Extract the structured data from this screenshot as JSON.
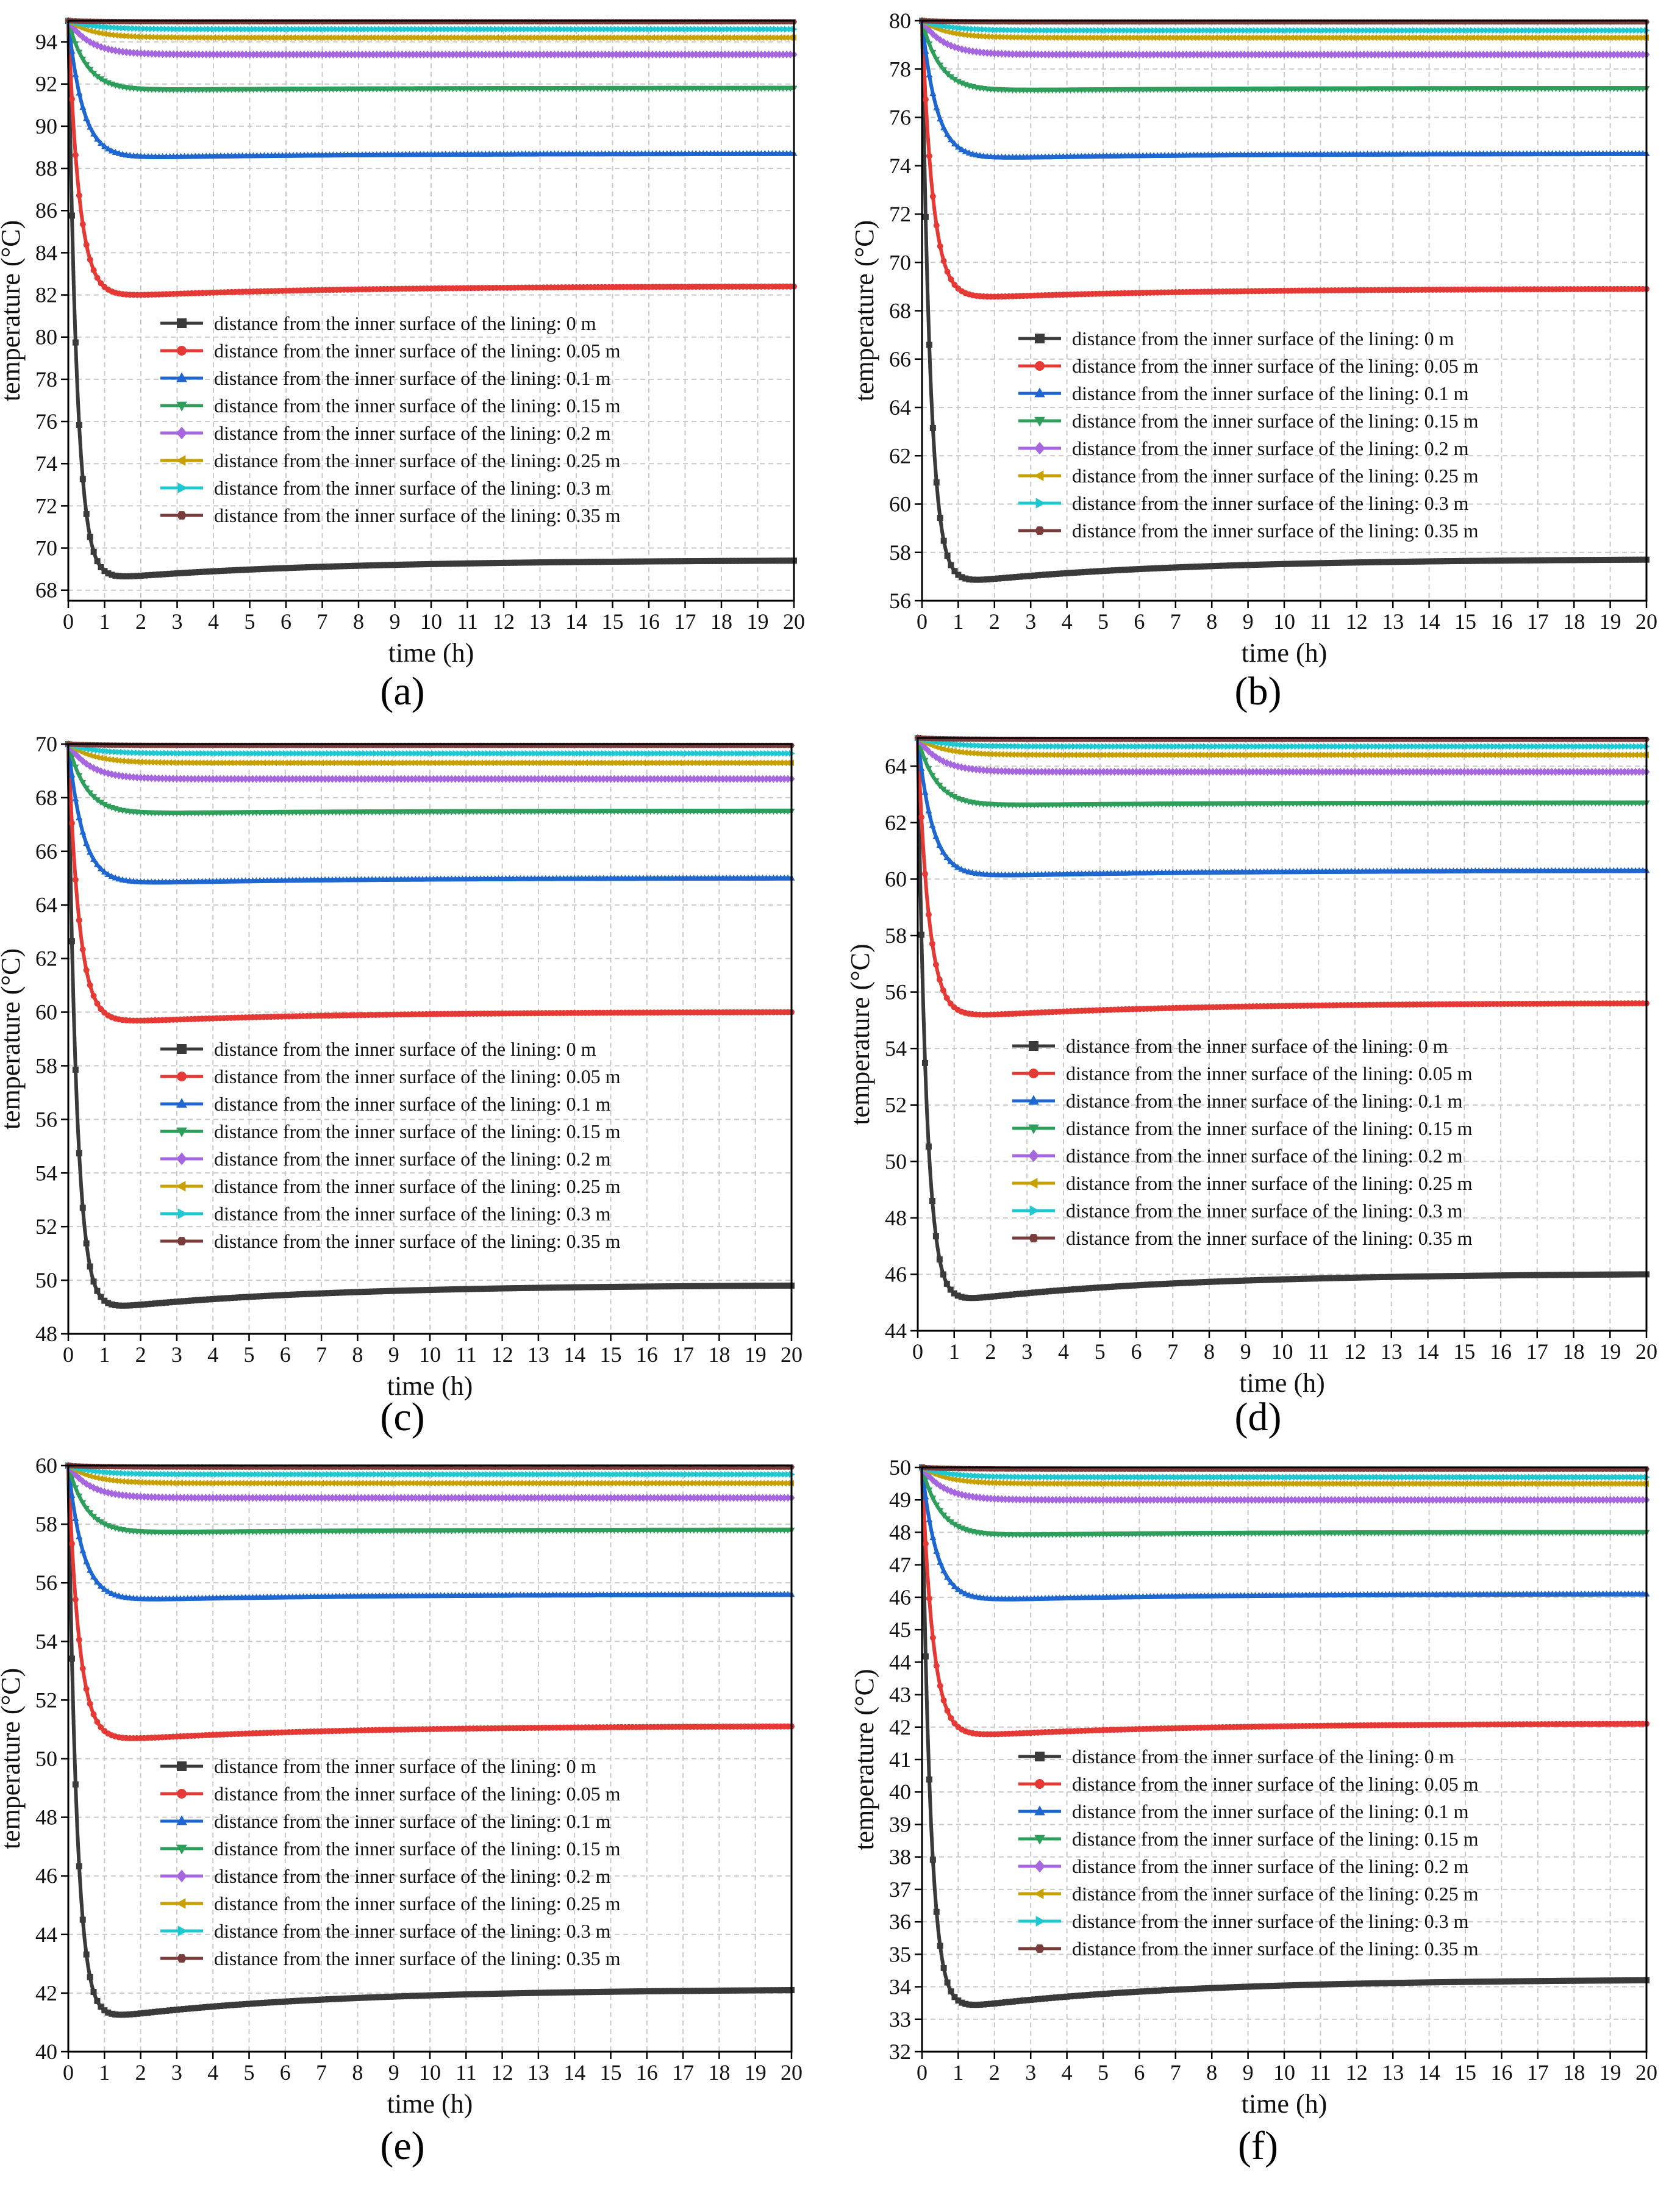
{
  "figure": {
    "panel_labels": [
      "(a)",
      "(b)",
      "(c)",
      "(d)",
      "(e)",
      "(f)"
    ]
  },
  "chart_data": [
    {
      "type": "line",
      "panel": "(a)",
      "xlabel": "time (h)",
      "ylabel": "temperature (°C)",
      "xlim": [
        0,
        20
      ],
      "ylim": [
        67.5,
        95
      ],
      "xticks": [
        0,
        1,
        2,
        3,
        4,
        5,
        6,
        7,
        8,
        9,
        10,
        11,
        12,
        13,
        14,
        15,
        16,
        17,
        18,
        19,
        20
      ],
      "yticks": [
        68,
        70,
        72,
        74,
        76,
        78,
        80,
        82,
        84,
        86,
        88,
        90,
        92,
        94
      ],
      "grid": true,
      "legend": "center",
      "series": [
        {
          "name": "distance from the inner surface of the lining: 0 m",
          "color": "#3a3a3a",
          "marker": "square",
          "initial": 95,
          "min": 68.5,
          "t_min": 0.7,
          "final": 69.4
        },
        {
          "name": "distance from the inner surface of the lining: 0.05 m",
          "color": "#e53935",
          "marker": "circle",
          "initial": 95,
          "min": 81.9,
          "t_min": 0.9,
          "final": 82.4
        },
        {
          "name": "distance from the inner surface of the lining: 0.1 m",
          "color": "#1e66d0",
          "marker": "triangle-up",
          "initial": 95,
          "min": 88.5,
          "t_min": 1.2,
          "final": 88.7
        },
        {
          "name": "distance from the inner surface of the lining: 0.15 m",
          "color": "#2e9e5b",
          "marker": "triangle-down",
          "initial": 95,
          "min": 91.7,
          "t_min": 1.5,
          "final": 91.8
        },
        {
          "name": "distance from the inner surface of the lining: 0.2 m",
          "color": "#a566e0",
          "marker": "diamond",
          "initial": 95,
          "min": 93.4,
          "t_min": 1.8,
          "final": 93.4
        },
        {
          "name": "distance from the inner surface of the lining: 0.25 m",
          "color": "#c8a000",
          "marker": "triangle-left",
          "initial": 95,
          "min": 94.2,
          "t_min": 2.0,
          "final": 94.2
        },
        {
          "name": "distance from the inner surface of the lining: 0.3 m",
          "color": "#1ec8d0",
          "marker": "triangle-right",
          "initial": 95,
          "min": 94.6,
          "t_min": 2.2,
          "final": 94.6
        },
        {
          "name": "distance from the inner surface of the lining: 0.35 m",
          "color": "#7a3b3b",
          "marker": "hexagon",
          "initial": 95,
          "min": 94.95,
          "t_min": 2.5,
          "final": 94.95
        }
      ]
    },
    {
      "type": "line",
      "panel": "(b)",
      "xlabel": "time (h)",
      "ylabel": "temperature (°C)",
      "xlim": [
        0,
        20
      ],
      "ylim": [
        56,
        80
      ],
      "xticks": [
        0,
        1,
        2,
        3,
        4,
        5,
        6,
        7,
        8,
        9,
        10,
        11,
        12,
        13,
        14,
        15,
        16,
        17,
        18,
        19,
        20
      ],
      "yticks": [
        56,
        58,
        60,
        62,
        64,
        66,
        68,
        70,
        72,
        74,
        76,
        78,
        80
      ],
      "grid": true,
      "legend": "center",
      "series": [
        {
          "name": "distance from the inner surface of the lining: 0 m",
          "color": "#3a3a3a",
          "marker": "square",
          "initial": 80,
          "min": 56.7,
          "t_min": 0.7,
          "final": 57.7
        },
        {
          "name": "distance from the inner surface of the lining: 0.05 m",
          "color": "#e53935",
          "marker": "circle",
          "initial": 80,
          "min": 68.5,
          "t_min": 0.9,
          "final": 68.9
        },
        {
          "name": "distance from the inner surface of the lining: 0.1 m",
          "color": "#1e66d0",
          "marker": "triangle-up",
          "initial": 80,
          "min": 74.3,
          "t_min": 1.2,
          "final": 74.5
        },
        {
          "name": "distance from the inner surface of the lining: 0.15 m",
          "color": "#2e9e5b",
          "marker": "triangle-down",
          "initial": 80,
          "min": 77.1,
          "t_min": 1.5,
          "final": 77.2
        },
        {
          "name": "distance from the inner surface of the lining: 0.2 m",
          "color": "#a566e0",
          "marker": "diamond",
          "initial": 80,
          "min": 78.6,
          "t_min": 1.8,
          "final": 78.6
        },
        {
          "name": "distance from the inner surface of the lining: 0.25 m",
          "color": "#c8a000",
          "marker": "triangle-left",
          "initial": 80,
          "min": 79.3,
          "t_min": 2.0,
          "final": 79.3
        },
        {
          "name": "distance from the inner surface of the lining: 0.3 m",
          "color": "#1ec8d0",
          "marker": "triangle-right",
          "initial": 80,
          "min": 79.6,
          "t_min": 2.2,
          "final": 79.6
        },
        {
          "name": "distance from the inner surface of the lining: 0.35 m",
          "color": "#7a3b3b",
          "marker": "hexagon",
          "initial": 80,
          "min": 79.95,
          "t_min": 2.5,
          "final": 79.95
        }
      ]
    },
    {
      "type": "line",
      "panel": "(c)",
      "xlabel": "time (h)",
      "ylabel": "temperature (°C)",
      "xlim": [
        0,
        20
      ],
      "ylim": [
        48,
        70
      ],
      "xticks": [
        0,
        1,
        2,
        3,
        4,
        5,
        6,
        7,
        8,
        9,
        10,
        11,
        12,
        13,
        14,
        15,
        16,
        17,
        18,
        19,
        20
      ],
      "yticks": [
        48,
        50,
        52,
        54,
        56,
        58,
        60,
        62,
        64,
        66,
        68,
        70
      ],
      "grid": true,
      "legend": "center",
      "series": [
        {
          "name": "distance from the inner surface of the lining: 0 m",
          "color": "#3a3a3a",
          "marker": "square",
          "initial": 70,
          "min": 48.9,
          "t_min": 0.7,
          "final": 49.8
        },
        {
          "name": "distance from the inner surface of the lining: 0.05 m",
          "color": "#e53935",
          "marker": "circle",
          "initial": 70,
          "min": 59.6,
          "t_min": 0.9,
          "final": 60.0
        },
        {
          "name": "distance from the inner surface of the lining: 0.1 m",
          "color": "#1e66d0",
          "marker": "triangle-up",
          "initial": 70,
          "min": 64.8,
          "t_min": 1.2,
          "final": 65.0
        },
        {
          "name": "distance from the inner surface of the lining: 0.15 m",
          "color": "#2e9e5b",
          "marker": "triangle-down",
          "initial": 70,
          "min": 67.4,
          "t_min": 1.5,
          "final": 67.5
        },
        {
          "name": "distance from the inner surface of the lining: 0.2 m",
          "color": "#a566e0",
          "marker": "diamond",
          "initial": 70,
          "min": 68.7,
          "t_min": 1.8,
          "final": 68.7
        },
        {
          "name": "distance from the inner surface of the lining: 0.25 m",
          "color": "#c8a000",
          "marker": "triangle-left",
          "initial": 70,
          "min": 69.3,
          "t_min": 2.0,
          "final": 69.3
        },
        {
          "name": "distance from the inner surface of the lining: 0.3 m",
          "color": "#1ec8d0",
          "marker": "triangle-right",
          "initial": 70,
          "min": 69.65,
          "t_min": 2.2,
          "final": 69.65
        },
        {
          "name": "distance from the inner surface of the lining: 0.35 m",
          "color": "#7a3b3b",
          "marker": "hexagon",
          "initial": 70,
          "min": 69.95,
          "t_min": 2.5,
          "final": 69.95
        }
      ]
    },
    {
      "type": "line",
      "panel": "(d)",
      "xlabel": "time (h)",
      "ylabel": "temperature (°C)",
      "xlim": [
        0,
        20
      ],
      "ylim": [
        44,
        65
      ],
      "xticks": [
        0,
        1,
        2,
        3,
        4,
        5,
        6,
        7,
        8,
        9,
        10,
        11,
        12,
        13,
        14,
        15,
        16,
        17,
        18,
        19,
        20
      ],
      "yticks": [
        44,
        46,
        48,
        50,
        52,
        54,
        56,
        58,
        60,
        62,
        64
      ],
      "grid": true,
      "legend": "center",
      "series": [
        {
          "name": "distance from the inner surface of the lining: 0 m",
          "color": "#3a3a3a",
          "marker": "square",
          "initial": 65,
          "min": 45.0,
          "t_min": 0.7,
          "final": 46.0
        },
        {
          "name": "distance from the inner surface of the lining: 0.05 m",
          "color": "#e53935",
          "marker": "circle",
          "initial": 65,
          "min": 55.1,
          "t_min": 0.9,
          "final": 55.6
        },
        {
          "name": "distance from the inner surface of the lining: 0.1 m",
          "color": "#1e66d0",
          "marker": "triangle-up",
          "initial": 65,
          "min": 60.1,
          "t_min": 1.2,
          "final": 60.3
        },
        {
          "name": "distance from the inner surface of the lining: 0.15 m",
          "color": "#2e9e5b",
          "marker": "triangle-down",
          "initial": 65,
          "min": 62.6,
          "t_min": 1.5,
          "final": 62.7
        },
        {
          "name": "distance from the inner surface of the lining: 0.2 m",
          "color": "#a566e0",
          "marker": "diamond",
          "initial": 65,
          "min": 63.8,
          "t_min": 1.8,
          "final": 63.8
        },
        {
          "name": "distance from the inner surface of the lining: 0.25 m",
          "color": "#c8a000",
          "marker": "triangle-left",
          "initial": 65,
          "min": 64.4,
          "t_min": 2.0,
          "final": 64.4
        },
        {
          "name": "distance from the inner surface of the lining: 0.3 m",
          "color": "#1ec8d0",
          "marker": "triangle-right",
          "initial": 65,
          "min": 64.7,
          "t_min": 2.2,
          "final": 64.7
        },
        {
          "name": "distance from the inner surface of the lining: 0.35 m",
          "color": "#7a3b3b",
          "marker": "hexagon",
          "initial": 65,
          "min": 64.95,
          "t_min": 2.5,
          "final": 64.95
        }
      ]
    },
    {
      "type": "line",
      "panel": "(e)",
      "xlabel": "time (h)",
      "ylabel": "temperature (°C)",
      "xlim": [
        0,
        20
      ],
      "ylim": [
        40,
        60
      ],
      "xticks": [
        0,
        1,
        2,
        3,
        4,
        5,
        6,
        7,
        8,
        9,
        10,
        11,
        12,
        13,
        14,
        15,
        16,
        17,
        18,
        19,
        20
      ],
      "yticks": [
        40,
        42,
        44,
        46,
        48,
        50,
        52,
        54,
        56,
        58,
        60
      ],
      "grid": true,
      "legend": "center",
      "series": [
        {
          "name": "distance from the inner surface of the lining: 0 m",
          "color": "#3a3a3a",
          "marker": "square",
          "initial": 60,
          "min": 41.1,
          "t_min": 0.7,
          "final": 42.1
        },
        {
          "name": "distance from the inner surface of the lining: 0.05 m",
          "color": "#e53935",
          "marker": "circle",
          "initial": 60,
          "min": 50.6,
          "t_min": 0.9,
          "final": 51.1
        },
        {
          "name": "distance from the inner surface of the lining: 0.1 m",
          "color": "#1e66d0",
          "marker": "triangle-up",
          "initial": 60,
          "min": 55.4,
          "t_min": 1.2,
          "final": 55.6
        },
        {
          "name": "distance from the inner surface of the lining: 0.15 m",
          "color": "#2e9e5b",
          "marker": "triangle-down",
          "initial": 60,
          "min": 57.7,
          "t_min": 1.5,
          "final": 57.8
        },
        {
          "name": "distance from the inner surface of the lining: 0.2 m",
          "color": "#a566e0",
          "marker": "diamond",
          "initial": 60,
          "min": 58.9,
          "t_min": 1.8,
          "final": 58.9
        },
        {
          "name": "distance from the inner surface of the lining: 0.25 m",
          "color": "#c8a000",
          "marker": "triangle-left",
          "initial": 60,
          "min": 59.4,
          "t_min": 2.0,
          "final": 59.4
        },
        {
          "name": "distance from the inner surface of the lining: 0.3 m",
          "color": "#1ec8d0",
          "marker": "triangle-right",
          "initial": 60,
          "min": 59.7,
          "t_min": 2.2,
          "final": 59.7
        },
        {
          "name": "distance from the inner surface of the lining: 0.35 m",
          "color": "#7a3b3b",
          "marker": "hexagon",
          "initial": 60,
          "min": 59.95,
          "t_min": 2.5,
          "final": 59.95
        }
      ]
    },
    {
      "type": "line",
      "panel": "(f)",
      "xlabel": "time (h)",
      "ylabel": "temperature (°C)",
      "xlim": [
        0,
        20
      ],
      "ylim": [
        32,
        50
      ],
      "xticks": [
        0,
        1,
        2,
        3,
        4,
        5,
        6,
        7,
        8,
        9,
        10,
        11,
        12,
        13,
        14,
        15,
        16,
        17,
        18,
        19,
        20
      ],
      "yticks": [
        32,
        33,
        34,
        35,
        36,
        37,
        38,
        39,
        40,
        41,
        42,
        43,
        44,
        45,
        46,
        47,
        48,
        49,
        50
      ],
      "grid": true,
      "legend": "center",
      "series": [
        {
          "name": "distance from the inner surface of the lining: 0 m",
          "color": "#3a3a3a",
          "marker": "square",
          "initial": 50,
          "min": 33.3,
          "t_min": 0.7,
          "final": 34.2
        },
        {
          "name": "distance from the inner surface of the lining: 0.05 m",
          "color": "#e53935",
          "marker": "circle",
          "initial": 50,
          "min": 41.7,
          "t_min": 0.9,
          "final": 42.1
        },
        {
          "name": "distance from the inner surface of the lining: 0.1 m",
          "color": "#1e66d0",
          "marker": "triangle-up",
          "initial": 50,
          "min": 45.9,
          "t_min": 1.2,
          "final": 46.1
        },
        {
          "name": "distance from the inner surface of the lining: 0.15 m",
          "color": "#2e9e5b",
          "marker": "triangle-down",
          "initial": 50,
          "min": 47.9,
          "t_min": 1.5,
          "final": 48.0
        },
        {
          "name": "distance from the inner surface of the lining: 0.2 m",
          "color": "#a566e0",
          "marker": "diamond",
          "initial": 50,
          "min": 49.0,
          "t_min": 1.8,
          "final": 49.0
        },
        {
          "name": "distance from the inner surface of the lining: 0.25 m",
          "color": "#c8a000",
          "marker": "triangle-left",
          "initial": 50,
          "min": 49.5,
          "t_min": 2.0,
          "final": 49.5
        },
        {
          "name": "distance from the inner surface of the lining: 0.3 m",
          "color": "#1ec8d0",
          "marker": "triangle-right",
          "initial": 50,
          "min": 49.7,
          "t_min": 2.2,
          "final": 49.7
        },
        {
          "name": "distance from the inner surface of the lining: 0.35 m",
          "color": "#7a3b3b",
          "marker": "hexagon",
          "initial": 50,
          "min": 49.95,
          "t_min": 2.5,
          "final": 49.95
        }
      ]
    }
  ]
}
